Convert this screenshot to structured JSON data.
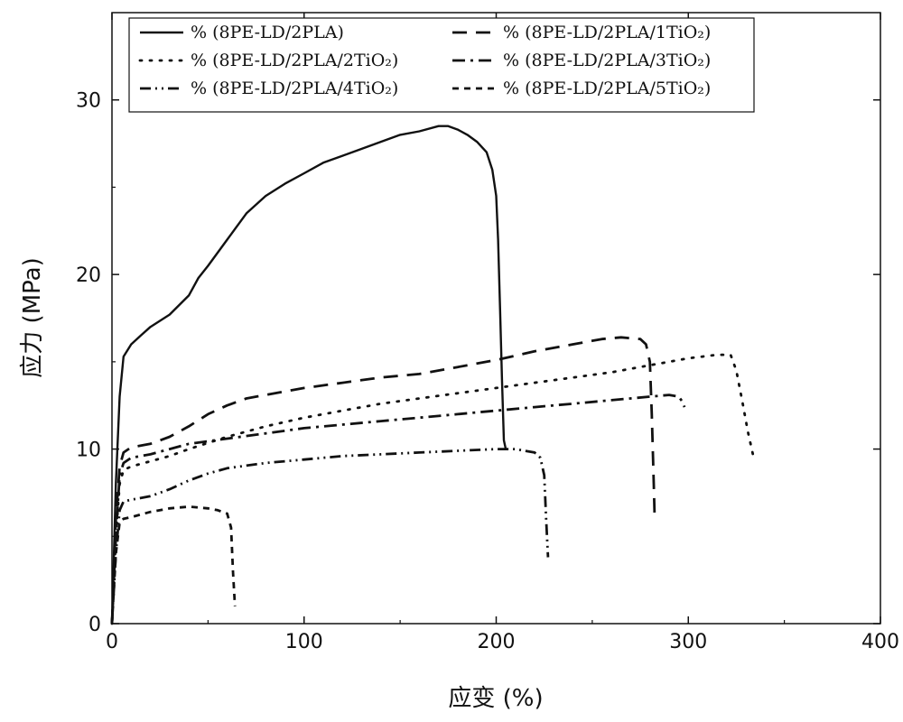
{
  "chart_data": {
    "type": "line",
    "xlabel": "应变 (%)",
    "ylabel": "应力 (MPa)",
    "xlim": [
      0,
      400
    ],
    "ylim": [
      0,
      35
    ],
    "xticks": [
      0,
      100,
      200,
      300,
      400
    ],
    "yticks": [
      0,
      10,
      20,
      30
    ],
    "grid": false,
    "legend_position": "top-left",
    "series": [
      {
        "name": "% (8PE-LD/2PLA)",
        "dash": "solid",
        "x": [
          0,
          2,
          4,
          6,
          10,
          15,
          20,
          30,
          40,
          45,
          50,
          60,
          70,
          80,
          90,
          100,
          110,
          120,
          130,
          140,
          150,
          160,
          170,
          175,
          180,
          185,
          190,
          195,
          198,
          200,
          201,
          202,
          203,
          204,
          205
        ],
        "y": [
          0,
          8,
          13,
          15.3,
          16,
          16.5,
          17,
          17.7,
          18.8,
          19.8,
          20.5,
          22,
          23.5,
          24.5,
          25.2,
          25.8,
          26.4,
          26.8,
          27.2,
          27.6,
          28,
          28.2,
          28.5,
          28.5,
          28.3,
          28,
          27.6,
          27,
          26,
          24.5,
          22,
          18,
          14,
          10.5,
          10
        ]
      },
      {
        "name": "% (8PE-LD/2PLA/1TiO₂)",
        "dash": "dash",
        "x": [
          0,
          2,
          4,
          6,
          10,
          20,
          30,
          40,
          50,
          60,
          70,
          80,
          100,
          120,
          140,
          160,
          180,
          190,
          200,
          220,
          240,
          255,
          265,
          275,
          278,
          280,
          281,
          282,
          282.5
        ],
        "y": [
          0,
          6,
          9,
          9.8,
          10.1,
          10.3,
          10.7,
          11.3,
          12,
          12.5,
          12.9,
          13.1,
          13.5,
          13.8,
          14.1,
          14.3,
          14.7,
          14.9,
          15.1,
          15.6,
          16,
          16.3,
          16.4,
          16.3,
          16,
          15,
          12,
          8,
          6
        ]
      },
      {
        "name": "% (8PE-LD/2PLA/2TiO₂)",
        "dash": "dot",
        "x": [
          0,
          2,
          4,
          6,
          10,
          20,
          30,
          40,
          60,
          80,
          100,
          120,
          140,
          160,
          180,
          200,
          220,
          240,
          260,
          280,
          300,
          315,
          322,
          325,
          328,
          331,
          333,
          334
        ],
        "y": [
          0,
          5,
          8,
          8.8,
          9,
          9.3,
          9.6,
          10,
          10.7,
          11.3,
          11.8,
          12.2,
          12.6,
          12.9,
          13.2,
          13.5,
          13.8,
          14.1,
          14.4,
          14.8,
          15.2,
          15.4,
          15.4,
          14.5,
          12.8,
          11,
          10,
          9.5
        ]
      },
      {
        "name": "% (8PE-LD/2PLA/3TiO₂)",
        "dash": "dashdot",
        "x": [
          0,
          2,
          4,
          6,
          10,
          20,
          30,
          40,
          60,
          80,
          100,
          120,
          140,
          160,
          180,
          200,
          220,
          240,
          260,
          280,
          290,
          295,
          297,
          298
        ],
        "y": [
          0,
          5,
          8.5,
          9.2,
          9.5,
          9.7,
          10,
          10.3,
          10.6,
          10.9,
          11.2,
          11.4,
          11.6,
          11.8,
          12,
          12.2,
          12.4,
          12.6,
          12.8,
          13,
          13.1,
          13,
          12.7,
          12.4
        ]
      },
      {
        "name": "% (8PE-LD/2PLA/4TiO₂)",
        "dash": "dashdotdot",
        "x": [
          0,
          2,
          4,
          6,
          10,
          20,
          30,
          40,
          50,
          60,
          80,
          100,
          120,
          140,
          160,
          180,
          200,
          210,
          215,
          220,
          223,
          225,
          226,
          227
        ],
        "y": [
          0,
          4,
          6.5,
          7,
          7.1,
          7.3,
          7.7,
          8.2,
          8.6,
          8.9,
          9.2,
          9.4,
          9.6,
          9.7,
          9.8,
          9.9,
          10,
          10,
          9.9,
          9.8,
          9.5,
          8.5,
          6,
          3.8
        ]
      },
      {
        "name": "% (8PE-LD/2PLA/5TiO₂)",
        "dash": "shortdash",
        "x": [
          0,
          2,
          4,
          6,
          10,
          20,
          30,
          40,
          50,
          55,
          60,
          62,
          63,
          64
        ],
        "y": [
          0,
          4,
          5.8,
          6,
          6.1,
          6.4,
          6.6,
          6.7,
          6.6,
          6.5,
          6.3,
          5.5,
          3,
          1
        ]
      }
    ]
  }
}
